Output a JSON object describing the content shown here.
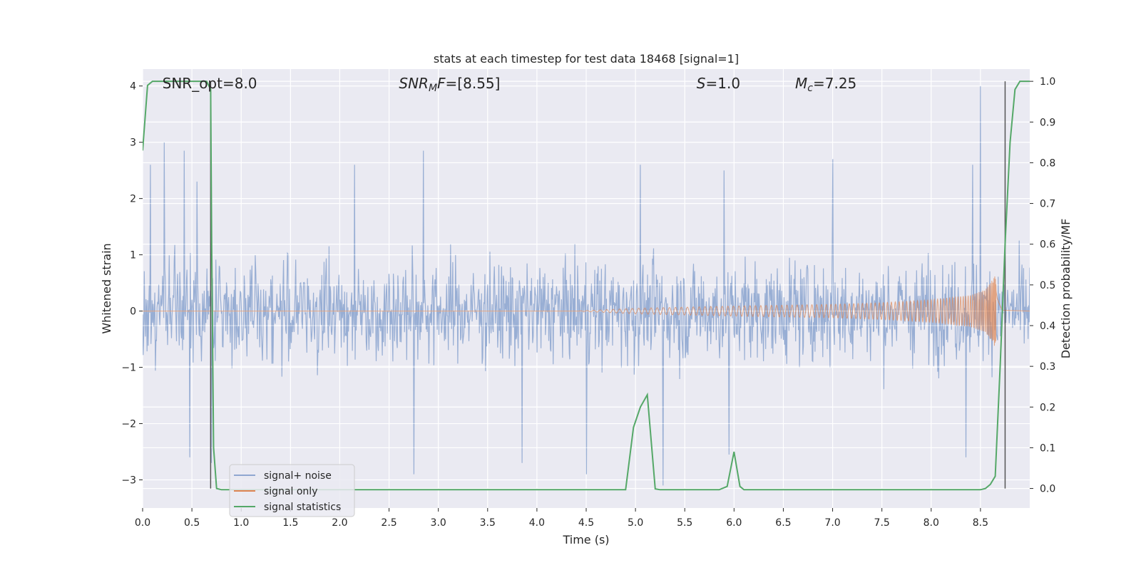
{
  "chart_data": {
    "type": "line",
    "title": "stats at each timestep for test data 18468 [signal=1]",
    "xlabel": "Time (s)",
    "ylabel": "Whitened strain",
    "y2label": "Detection probability/MF",
    "xlim": [
      0.0,
      9.0
    ],
    "ylim": [
      -3.5,
      4.3
    ],
    "y2lim": [
      -0.048,
      1.03
    ],
    "xticks": [
      0.0,
      0.5,
      1.0,
      1.5,
      2.0,
      2.5,
      3.0,
      3.5,
      4.0,
      4.5,
      5.0,
      5.5,
      6.0,
      6.5,
      7.0,
      7.5,
      8.0,
      8.5
    ],
    "xtick_labels": [
      "0.0",
      "0.5",
      "1.0",
      "1.5",
      "2.0",
      "2.5",
      "3.0",
      "3.5",
      "4.0",
      "4.5",
      "5.0",
      "5.5",
      "6.0",
      "6.5",
      "7.0",
      "7.5",
      "8.0",
      "8.5"
    ],
    "yticks": [
      -3,
      -2,
      -1,
      0,
      1,
      2,
      3,
      4
    ],
    "ytick_labels": [
      "−3",
      "−2",
      "−1",
      "0",
      "1",
      "2",
      "3",
      "4"
    ],
    "y2ticks": [
      0.0,
      0.1,
      0.2,
      0.3,
      0.4,
      0.5,
      0.6,
      0.7,
      0.8,
      0.9,
      1.0
    ],
    "y2tick_labels": [
      "0.0",
      "0.1",
      "0.2",
      "0.3",
      "0.4",
      "0.5",
      "0.6",
      "0.7",
      "0.8",
      "0.9",
      "1.0"
    ],
    "grid": true,
    "legend_position": "lower-left",
    "annotations": [
      {
        "key": "snr_opt",
        "x": 0.2,
        "parts": [
          {
            "t": "SNR_opt=8.0",
            "i": false,
            "s": false
          }
        ]
      },
      {
        "key": "snr_mf",
        "x": 2.6,
        "parts": [
          {
            "t": "SNR",
            "i": true,
            "s": false
          },
          {
            "t": "M",
            "i": true,
            "s": true
          },
          {
            "t": "F",
            "i": true,
            "s": false
          },
          {
            "t": "=[8.55]",
            "i": false,
            "s": false
          }
        ]
      },
      {
        "key": "s",
        "x": 5.62,
        "parts": [
          {
            "t": "S",
            "i": true,
            "s": false
          },
          {
            "t": "=1.0",
            "i": false,
            "s": false
          }
        ]
      },
      {
        "key": "mc",
        "x": 6.62,
        "parts": [
          {
            "t": "M",
            "i": true,
            "s": false
          },
          {
            "t": "c",
            "i": true,
            "s": true
          },
          {
            "t": "=7.25",
            "i": false,
            "s": false
          }
        ]
      }
    ],
    "vlines": [
      0.69,
      8.75
    ],
    "colors": {
      "noise": "#8fa7d0",
      "signal": "#dd8452",
      "stats": "#55a868",
      "vline": "#555555",
      "grid": "#ffffff",
      "bg": "#eaeaf2"
    },
    "series": [
      {
        "name": "signal+ noise",
        "axis": "left",
        "description": "whitened strain, white-noise-like, amplitude mostly within ±1.8 with spikes up to 3 (and 4 at t≈8.5), lows to ~-2.9",
        "spikes_up": [
          [
            0.22,
            3.0
          ],
          [
            0.08,
            2.6
          ],
          [
            0.42,
            2.85
          ],
          [
            0.55,
            2.3
          ],
          [
            2.15,
            2.6
          ],
          [
            2.85,
            2.85
          ],
          [
            5.05,
            2.6
          ],
          [
            5.9,
            2.5
          ],
          [
            7.0,
            2.7
          ],
          [
            8.5,
            4.0
          ],
          [
            8.42,
            2.6
          ]
        ],
        "spikes_down": [
          [
            0.48,
            -2.6
          ],
          [
            0.7,
            -2.7
          ],
          [
            2.75,
            -2.9
          ],
          [
            3.85,
            -2.7
          ],
          [
            4.5,
            -2.9
          ],
          [
            5.28,
            -3.1
          ],
          [
            5.95,
            -2.55
          ],
          [
            8.35,
            -2.6
          ]
        ]
      },
      {
        "name": "signal only",
        "axis": "left",
        "description": "chirp: negligible before t≈4.5 s, amplitude grows to ~0.65 near merger at t≈8.65 s, then ringdown to 0",
        "envelope": [
          [
            0.0,
            0.0
          ],
          [
            4.4,
            0.0
          ],
          [
            5.0,
            0.05
          ],
          [
            6.0,
            0.09
          ],
          [
            7.0,
            0.12
          ],
          [
            7.5,
            0.15
          ],
          [
            8.0,
            0.2
          ],
          [
            8.4,
            0.28
          ],
          [
            8.55,
            0.38
          ],
          [
            8.62,
            0.55
          ],
          [
            8.65,
            0.66
          ],
          [
            8.67,
            0.3
          ],
          [
            8.72,
            0.02
          ],
          [
            9.0,
            0.0
          ]
        ]
      },
      {
        "name": "signal statistics",
        "axis": "right",
        "x": [
          0.0,
          0.05,
          0.1,
          0.15,
          0.2,
          0.3,
          0.4,
          0.5,
          0.6,
          0.65,
          0.69,
          0.7,
          0.72,
          0.75,
          0.8,
          0.9,
          1.0,
          1.5,
          2.0,
          3.0,
          4.0,
          4.5,
          4.9,
          4.98,
          5.05,
          5.12,
          5.2,
          5.25,
          5.3,
          5.5,
          5.85,
          5.93,
          6.0,
          6.06,
          6.1,
          6.5,
          7.0,
          7.5,
          8.0,
          8.5,
          8.55,
          8.6,
          8.65,
          8.7,
          8.75,
          8.8,
          8.85,
          8.9,
          8.95,
          9.0
        ],
        "y": [
          0.83,
          0.99,
          1.0,
          1.0,
          1.0,
          1.0,
          1.0,
          1.0,
          1.0,
          1.0,
          0.98,
          0.6,
          0.1,
          0.0,
          -0.003,
          -0.003,
          -0.003,
          -0.003,
          -0.003,
          -0.003,
          -0.003,
          -0.003,
          -0.003,
          0.15,
          0.2,
          0.23,
          -0.001,
          -0.003,
          -0.003,
          -0.003,
          -0.003,
          0.005,
          0.09,
          0.005,
          -0.003,
          -0.003,
          -0.003,
          -0.003,
          -0.003,
          -0.003,
          0.0,
          0.01,
          0.03,
          0.3,
          0.6,
          0.85,
          0.98,
          1.0,
          1.0,
          1.0
        ]
      }
    ]
  }
}
